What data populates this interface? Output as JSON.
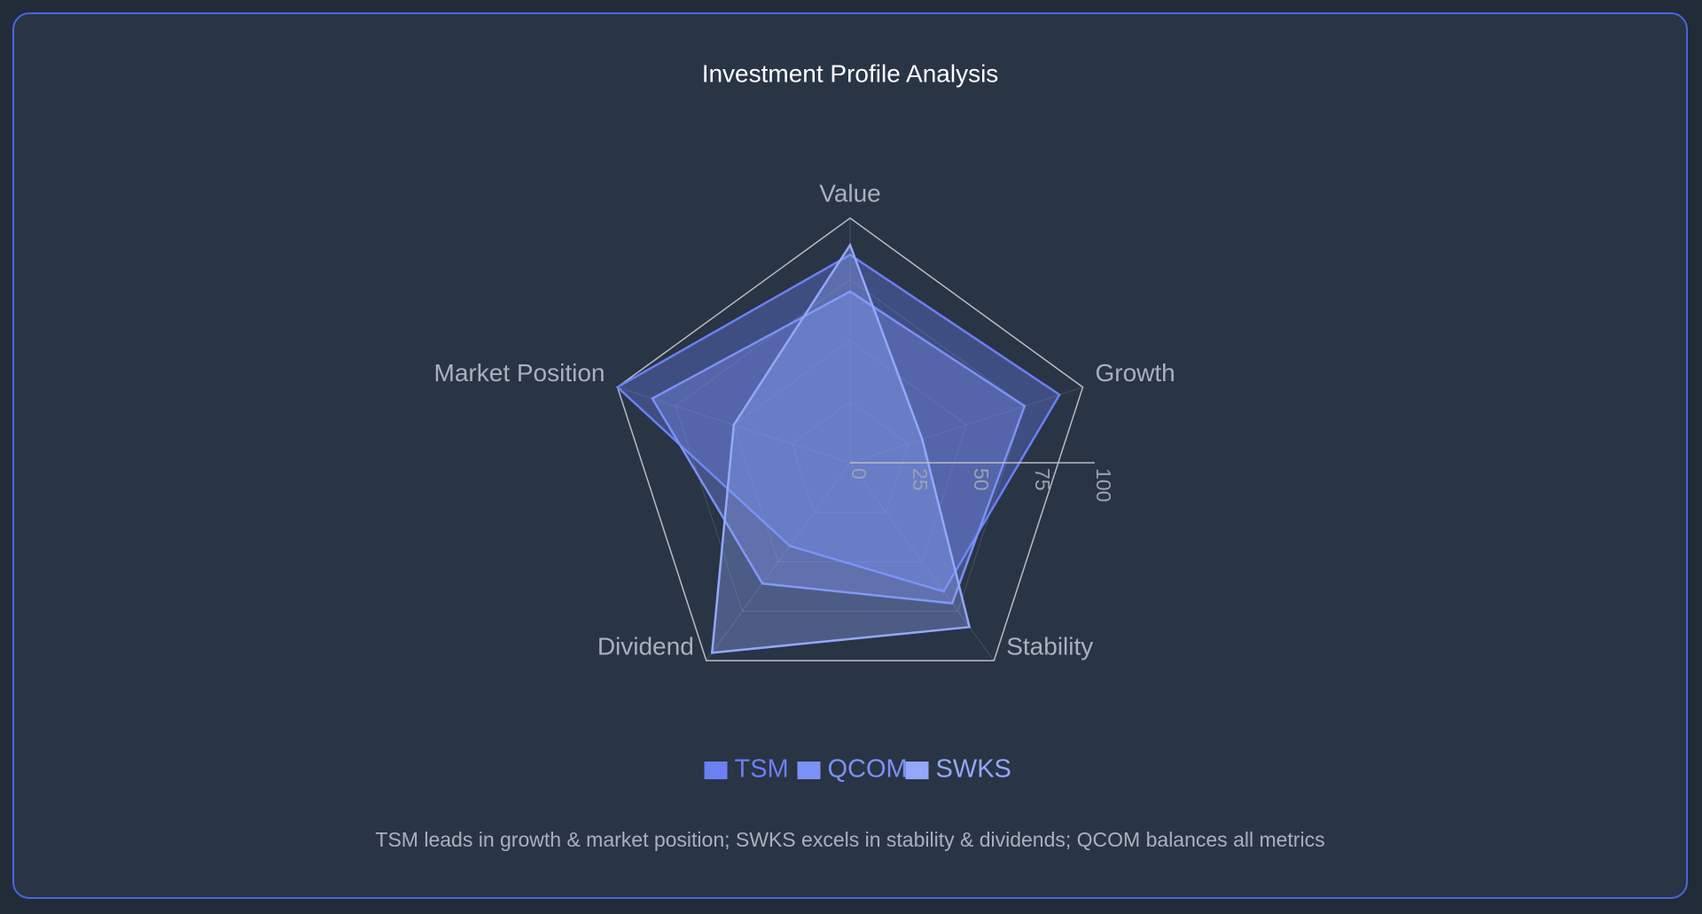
{
  "chart_data": {
    "type": "radar",
    "title": "Investment Profile Analysis",
    "categories": [
      "Value",
      "Growth",
      "Stability",
      "Dividend",
      "Market Position"
    ],
    "series": [
      {
        "name": "TSM",
        "color": "#6b80f2",
        "values": [
          85,
          90,
          65,
          42,
          100
        ]
      },
      {
        "name": "QCOM",
        "color": "#7b91f6",
        "values": [
          70,
          75,
          71,
          61,
          85
        ]
      },
      {
        "name": "SWKS",
        "color": "#93a8fb",
        "values": [
          89,
          31,
          83,
          96,
          50
        ]
      }
    ],
    "rlim": [
      0,
      100
    ],
    "rticks": [
      0,
      25,
      50,
      75,
      100
    ],
    "grid": true,
    "legend": "bottom",
    "annotation": "TSM leads in growth & market position; SWKS excels in stability & dividends; QCOM balances all metrics"
  }
}
